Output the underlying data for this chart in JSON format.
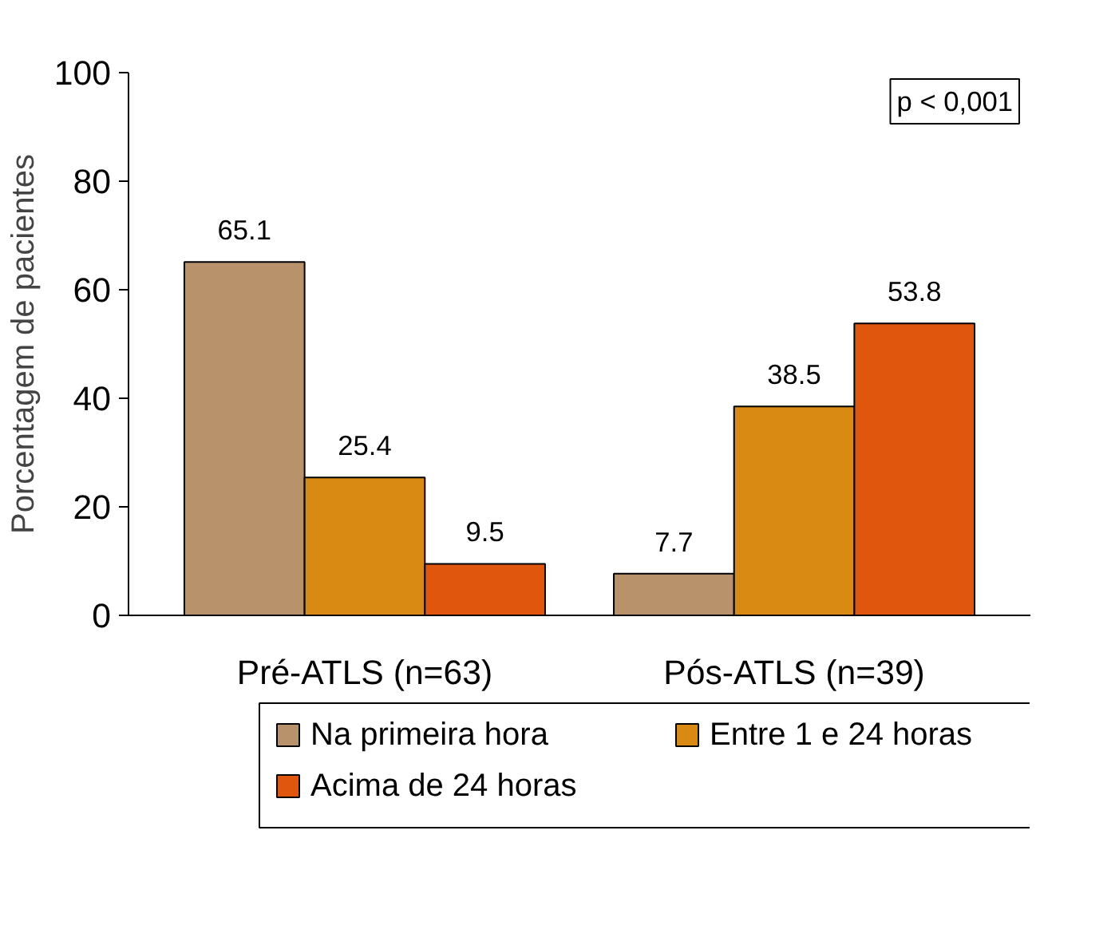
{
  "chart_data": {
    "type": "bar",
    "ylabel": "Porcentagem de pacientes",
    "categories": [
      "Pré-ATLS (n=63)",
      "Pós-ATLS (n=39)"
    ],
    "series": [
      {
        "name": "Na primeira hora",
        "color": "#b8926a",
        "values": [
          65.1,
          7.7
        ]
      },
      {
        "name": "Entre 1 e 24 horas",
        "color": "#d98a12",
        "values": [
          25.4,
          38.5
        ]
      },
      {
        "name": "Acima de 24 horas",
        "color": "#e0560c",
        "values": [
          9.5,
          53.8
        ]
      }
    ],
    "ylim": [
      0,
      100
    ],
    "yticks": [
      0,
      20,
      40,
      60,
      80,
      100
    ],
    "data_labels": true,
    "grid": false,
    "legend": "bottom",
    "annotations": [
      "p < 0,001"
    ]
  }
}
